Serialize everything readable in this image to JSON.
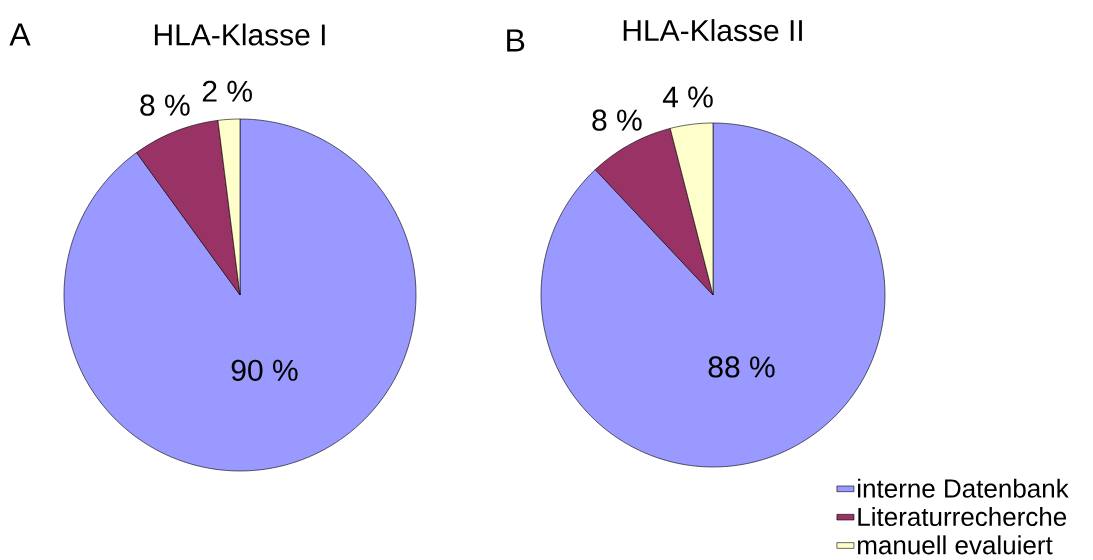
{
  "chart_data": [
    {
      "type": "pie",
      "title": "HLA-Klasse I",
      "annotations": [
        "A"
      ],
      "categories": [
        null,
        null,
        null
      ],
      "values": [
        90,
        8,
        2
      ],
      "value_labels": [
        "90 %",
        "8 %",
        "2 %"
      ],
      "colors": [
        "#9999ff",
        "#993366",
        "#ffffcc"
      ]
    },
    {
      "type": "pie",
      "title": "HLA-Klasse II",
      "annotations": [
        "B"
      ],
      "categories": [
        "interne Datenbank",
        "Literaturrecherche",
        "manuell evaluiert"
      ],
      "values": [
        88,
        8,
        4
      ],
      "value_labels": [
        "88 %",
        "8 %",
        "4 %"
      ],
      "colors": [
        "#9999ff",
        "#993366",
        "#ffffcc"
      ],
      "legend": "bottom right"
    }
  ]
}
